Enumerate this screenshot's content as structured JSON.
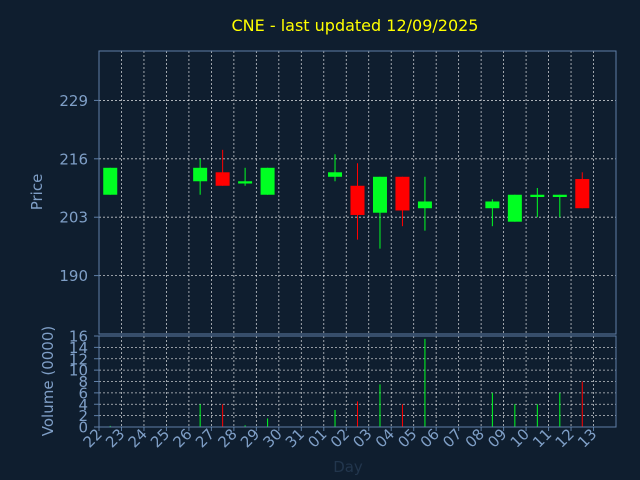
{
  "chart_data": [
    {
      "type": "candlestick",
      "title": "CNE - last updated 12/09/2025",
      "ylabel": "Price",
      "ylim": [
        177,
        240
      ],
      "yticks": [
        190,
        203,
        216,
        229
      ],
      "grid": true,
      "categories": [
        "22",
        "23",
        "24",
        "25",
        "26",
        "27",
        "28",
        "29",
        "30",
        "31",
        "01",
        "02",
        "03",
        "04",
        "05",
        "06",
        "07",
        "08",
        "09",
        "10",
        "11",
        "12",
        "13"
      ],
      "candles": [
        {
          "day": "22",
          "open": 208,
          "high": 214,
          "low": 208,
          "close": 214
        },
        {
          "day": "26",
          "open": 211,
          "high": 216,
          "low": 208,
          "close": 214
        },
        {
          "day": "27",
          "open": 213,
          "high": 218,
          "low": 210,
          "close": 210
        },
        {
          "day": "28",
          "open": 210.5,
          "high": 214,
          "low": 210,
          "close": 211
        },
        {
          "day": "29",
          "open": 208,
          "high": 214,
          "low": 208,
          "close": 214
        },
        {
          "day": "01",
          "open": 212,
          "high": 217,
          "low": 211,
          "close": 213
        },
        {
          "day": "02",
          "open": 210,
          "high": 215,
          "low": 198,
          "close": 203.5
        },
        {
          "day": "03",
          "open": 204,
          "high": 212,
          "low": 196,
          "close": 212
        },
        {
          "day": "04",
          "open": 212,
          "high": 212,
          "low": 201,
          "close": 204.5
        },
        {
          "day": "05",
          "open": 205,
          "high": 212,
          "low": 200,
          "close": 206.5
        },
        {
          "day": "08",
          "open": 205,
          "high": 207,
          "low": 201,
          "close": 206.5
        },
        {
          "day": "09",
          "open": 202,
          "high": 208,
          "low": 202,
          "close": 208
        },
        {
          "day": "10",
          "open": 207.5,
          "high": 209.5,
          "low": 203,
          "close": 208
        },
        {
          "day": "11",
          "open": 207.5,
          "high": 208,
          "low": 203,
          "close": 208
        },
        {
          "day": "12",
          "open": 211.5,
          "high": 213,
          "low": 205,
          "close": 205
        }
      ]
    },
    {
      "type": "bar",
      "ylabel": "Volume (0000)",
      "xlabel": "Day",
      "ylim": [
        0,
        16
      ],
      "yticks": [
        0,
        2,
        4,
        6,
        8,
        10,
        12,
        14,
        16
      ],
      "grid": true,
      "categories": [
        "22",
        "23",
        "24",
        "25",
        "26",
        "27",
        "28",
        "29",
        "30",
        "31",
        "01",
        "02",
        "03",
        "04",
        "05",
        "06",
        "07",
        "08",
        "09",
        "10",
        "11",
        "12",
        "13"
      ],
      "volumes": [
        {
          "day": "22",
          "value": 0.2,
          "direction": "up"
        },
        {
          "day": "26",
          "value": 4,
          "direction": "up"
        },
        {
          "day": "27",
          "value": 4,
          "direction": "down"
        },
        {
          "day": "28",
          "value": 0.3,
          "direction": "up"
        },
        {
          "day": "29",
          "value": 1.5,
          "direction": "up"
        },
        {
          "day": "01",
          "value": 3,
          "direction": "up"
        },
        {
          "day": "02",
          "value": 4.5,
          "direction": "down"
        },
        {
          "day": "03",
          "value": 7.5,
          "direction": "up"
        },
        {
          "day": "04",
          "value": 4,
          "direction": "down"
        },
        {
          "day": "05",
          "value": 15.5,
          "direction": "up"
        },
        {
          "day": "08",
          "value": 6,
          "direction": "up"
        },
        {
          "day": "09",
          "value": 4,
          "direction": "up"
        },
        {
          "day": "10",
          "value": 4,
          "direction": "up"
        },
        {
          "day": "11",
          "value": 6,
          "direction": "up"
        },
        {
          "day": "12",
          "value": 8,
          "direction": "down"
        }
      ]
    }
  ],
  "colors": {
    "background": "#0f1e2f",
    "title": "#ffff00",
    "axis_text": "#7f9fc7",
    "axis_line": "#5f7fa7",
    "grid": "#ffffff",
    "up": "#00ff22",
    "down": "#ff0000"
  }
}
